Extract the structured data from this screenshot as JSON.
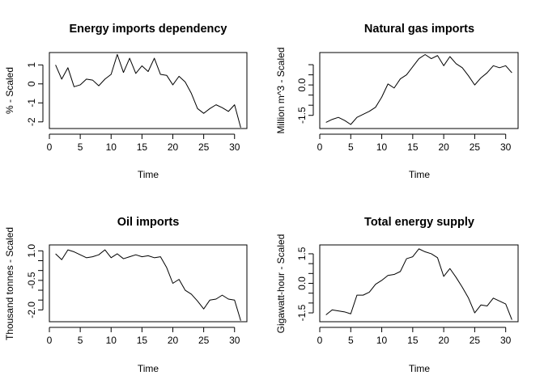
{
  "chart_data": [
    {
      "type": "line",
      "title": "Energy imports dependency",
      "xlabel": "Time",
      "ylabel": "% - Scaled",
      "xlim": [
        0,
        32
      ],
      "ylim": [
        -2.35,
        1.65
      ],
      "xticks": [
        0,
        5,
        10,
        15,
        20,
        25,
        30
      ],
      "yticks": [
        -2,
        -1,
        0,
        1
      ],
      "ytick_labels": [
        "-2",
        "-1",
        "0",
        "1"
      ],
      "x": [
        1,
        2,
        3,
        4,
        5,
        6,
        7,
        8,
        9,
        10,
        11,
        12,
        13,
        14,
        15,
        16,
        17,
        18,
        19,
        20,
        21,
        22,
        23,
        24,
        25,
        26,
        27,
        28,
        29,
        30,
        31
      ],
      "values": [
        1.0,
        0.25,
        0.85,
        -0.15,
        -0.05,
        0.25,
        0.2,
        -0.1,
        0.25,
        0.5,
        1.55,
        0.6,
        1.35,
        0.55,
        0.95,
        0.65,
        1.35,
        0.5,
        0.45,
        -0.05,
        0.4,
        0.1,
        -0.5,
        -1.3,
        -1.55,
        -1.3,
        -1.1,
        -1.25,
        -1.45,
        -1.1,
        -2.3
      ],
      "grid": false
    },
    {
      "type": "line",
      "title": "Natural gas imports",
      "xlabel": "Time",
      "ylabel": "Million m^3 - Scaled",
      "xlim": [
        0,
        32
      ],
      "ylim": [
        -2.15,
        1.6
      ],
      "xticks": [
        0,
        5,
        10,
        15,
        20,
        25,
        30
      ],
      "yticks": [
        -1.5,
        -1,
        -0.5,
        0,
        0.5,
        1
      ],
      "ytick_labels": [
        "-1.5",
        "",
        "",
        "0.0",
        "",
        ""
      ],
      "x": [
        1,
        2,
        3,
        4,
        5,
        6,
        7,
        8,
        9,
        10,
        11,
        12,
        13,
        14,
        15,
        16,
        17,
        18,
        19,
        20,
        21,
        22,
        23,
        24,
        25,
        26,
        27,
        28,
        29,
        30,
        31
      ],
      "values": [
        -1.85,
        -1.7,
        -1.6,
        -1.75,
        -1.95,
        -1.6,
        -1.45,
        -1.3,
        -1.1,
        -0.6,
        0.05,
        -0.15,
        0.3,
        0.5,
        0.9,
        1.3,
        1.5,
        1.3,
        1.45,
        0.95,
        1.4,
        1.05,
        0.85,
        0.45,
        0.0,
        0.35,
        0.6,
        0.95,
        0.85,
        0.95,
        0.6
      ],
      "grid": false
    },
    {
      "type": "line",
      "title": "Oil imports",
      "xlabel": "Time",
      "ylabel": "Thousand tonnes - Scaled",
      "xlim": [
        0,
        32
      ],
      "ylim": [
        -2.6,
        1.3
      ],
      "xticks": [
        0,
        5,
        10,
        15,
        20,
        25,
        30
      ],
      "yticks": [
        -2,
        -1.5,
        -1,
        -0.5,
        0,
        0.5,
        1
      ],
      "ytick_labels": [
        "-2.0",
        "",
        "",
        "-0.5",
        "",
        "",
        "1.0"
      ],
      "x": [
        1,
        2,
        3,
        4,
        5,
        6,
        7,
        8,
        9,
        10,
        11,
        12,
        13,
        14,
        15,
        16,
        17,
        18,
        19,
        20,
        21,
        22,
        23,
        24,
        25,
        26,
        27,
        28,
        29,
        30,
        31
      ],
      "values": [
        0.85,
        0.55,
        1.05,
        0.95,
        0.8,
        0.65,
        0.7,
        0.8,
        1.05,
        0.65,
        0.85,
        0.6,
        0.7,
        0.8,
        0.7,
        0.75,
        0.65,
        0.7,
        0.15,
        -0.65,
        -0.45,
        -1.0,
        -1.2,
        -1.55,
        -1.95,
        -1.5,
        -1.45,
        -1.25,
        -1.45,
        -1.5,
        -2.55
      ],
      "grid": false
    },
    {
      "type": "line",
      "title": "Total energy supply",
      "xlabel": "Time",
      "ylabel": "Gigawatt-hour - Scaled",
      "xlim": [
        0,
        32
      ],
      "ylim": [
        -1.95,
        1.95
      ],
      "xticks": [
        0,
        5,
        10,
        15,
        20,
        25,
        30
      ],
      "yticks": [
        -1.5,
        -1,
        -0.5,
        0,
        0.5,
        1,
        1.5
      ],
      "ytick_labels": [
        "-1.5",
        "",
        "",
        "0.0",
        "",
        "",
        "1.5"
      ],
      "x": [
        1,
        2,
        3,
        4,
        5,
        6,
        7,
        8,
        9,
        10,
        11,
        12,
        13,
        14,
        15,
        16,
        17,
        18,
        19,
        20,
        21,
        22,
        23,
        24,
        25,
        26,
        27,
        28,
        29,
        30,
        31
      ],
      "values": [
        -1.6,
        -1.35,
        -1.4,
        -1.45,
        -1.55,
        -0.6,
        -0.6,
        -0.45,
        -0.05,
        0.15,
        0.4,
        0.45,
        0.6,
        1.25,
        1.35,
        1.75,
        1.6,
        1.5,
        1.3,
        0.35,
        0.75,
        0.3,
        -0.2,
        -0.75,
        -1.5,
        -1.1,
        -1.15,
        -0.75,
        -0.9,
        -1.05,
        -1.85
      ],
      "grid": false
    }
  ]
}
